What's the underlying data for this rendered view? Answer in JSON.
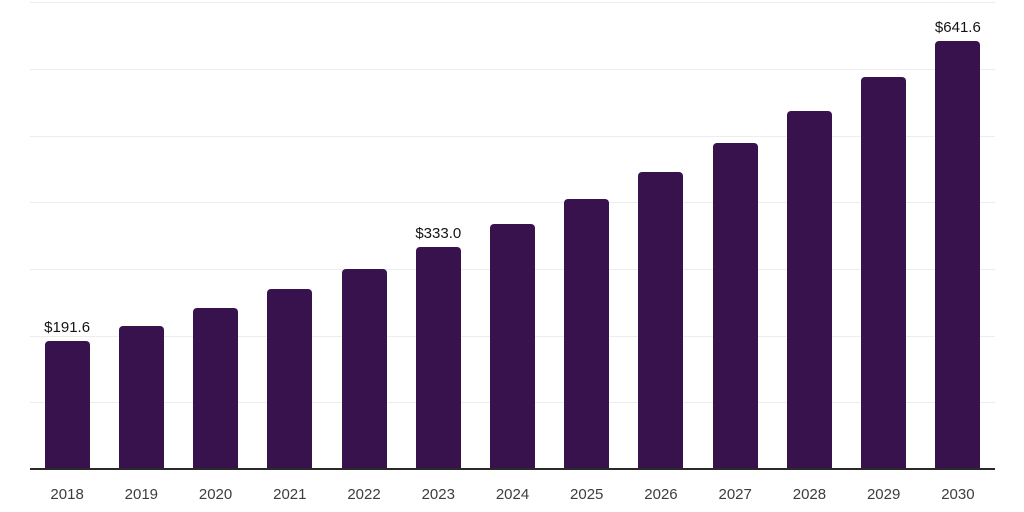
{
  "chart_data": {
    "type": "bar",
    "categories": [
      "2018",
      "2019",
      "2020",
      "2021",
      "2022",
      "2023",
      "2024",
      "2025",
      "2026",
      "2027",
      "2028",
      "2029",
      "2030"
    ],
    "values": [
      191.6,
      215.0,
      241.0,
      270.0,
      300.0,
      333.0,
      367.0,
      405.0,
      445.0,
      489.0,
      537.0,
      588.0,
      641.6
    ],
    "data_labels": [
      "$191.6",
      null,
      null,
      null,
      null,
      "$333.0",
      null,
      null,
      null,
      null,
      null,
      null,
      "$641.6"
    ],
    "title": "",
    "xlabel": "",
    "ylabel": "",
    "ylim": [
      0,
      700
    ],
    "grid_step": 100,
    "grid": true,
    "legend": false,
    "y_tick_labels_visible": false,
    "colors": {
      "bar": "#38124d",
      "gridline": "#ededed",
      "axis": "#2a2a2a",
      "x_tick_label": "#3d3d3d",
      "value_label": "#141414",
      "background": "#ffffff"
    }
  }
}
